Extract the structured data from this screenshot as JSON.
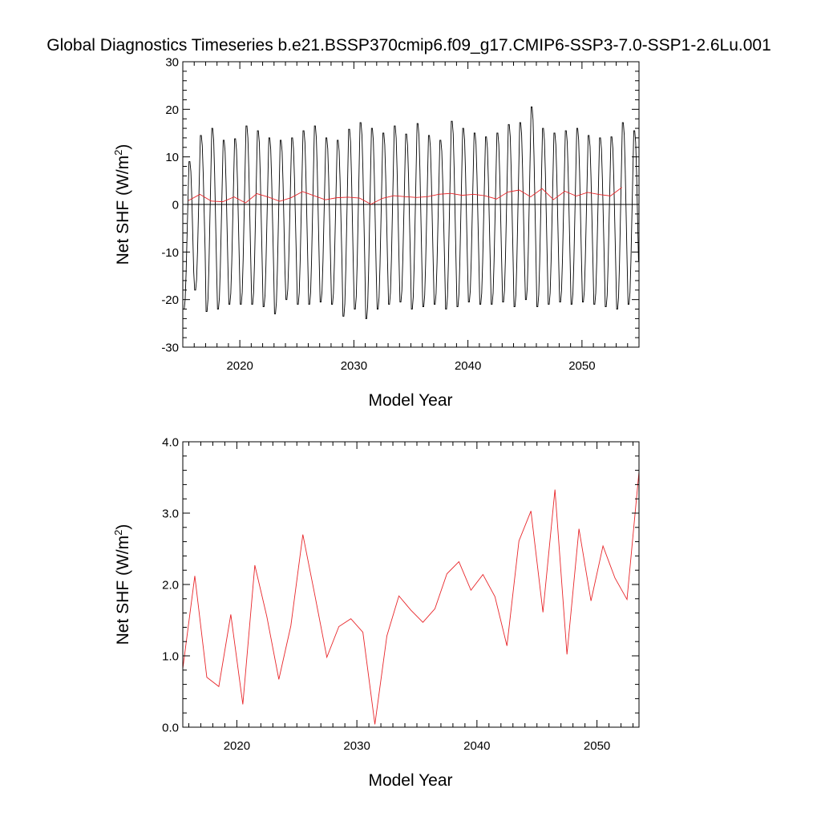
{
  "title": "Global Diagnostics Timeseries b.e21.BSSP370cmip6.f09_g17.CMIP6-SSP3-7.0-SSP1-2.6Lu.001",
  "chart_data": [
    {
      "type": "line",
      "xlabel": "Model Year",
      "ylabel": "Net SHF (W/m",
      "ylabel_sup": "2",
      "ylabel_close": ")",
      "xlim": [
        2015,
        2055
      ],
      "ylim": [
        -30,
        30
      ],
      "yticks": [
        "-30",
        "-20",
        "-10",
        "0",
        "10",
        "20",
        "30"
      ],
      "xticks": [
        "2020",
        "2030",
        "2040",
        "2050"
      ],
      "zero_line": true,
      "series": [
        {
          "kind": "monthly",
          "color": "#000000",
          "start_year": 2015,
          "months_per_year": 12,
          "annual_max": [
            9,
            14.5,
            16,
            13.5,
            13.8,
            16.5,
            15.5,
            14,
            13.5,
            14,
            15.5,
            16.5,
            14,
            13.5,
            15.8,
            17.2,
            16,
            15,
            16.5,
            14.8,
            17,
            14.5,
            13.5,
            17.5,
            16,
            15,
            14.2,
            15,
            16.8,
            17.2,
            20.5,
            16,
            15,
            15.5,
            16,
            14.5,
            14,
            14.2,
            17.2,
            15.5
          ],
          "annual_min": [
            -22,
            -18,
            -22.5,
            -22,
            -21,
            -21,
            -21,
            -21.5,
            -23,
            -20,
            -21,
            -21,
            -20.5,
            -21,
            -23.5,
            -22,
            -24,
            -22,
            -21,
            -20.5,
            -22,
            -21.5,
            -21,
            -22,
            -21.5,
            -20.5,
            -21,
            -21,
            -20.5,
            -21.5,
            -20,
            -21.5,
            -21,
            -20.5,
            -21,
            -20.5,
            -21,
            -21.5,
            -22,
            -21
          ]
        },
        {
          "kind": "annual",
          "color": "#e8262a",
          "x": [
            2015.5,
            2016.5,
            2017.5,
            2018.5,
            2019.5,
            2020.5,
            2021.5,
            2022.5,
            2023.5,
            2024.5,
            2025.5,
            2026.5,
            2027.5,
            2028.5,
            2029.5,
            2030.5,
            2031.5,
            2032.5,
            2033.5,
            2034.5,
            2035.5,
            2036.5,
            2037.5,
            2038.5,
            2039.5,
            2040.5,
            2041.5,
            2042.5,
            2043.5,
            2044.5,
            2045.5,
            2046.5,
            2047.5,
            2048.5,
            2049.5,
            2050.5,
            2051.5,
            2052.5,
            2053.5
          ],
          "values": [
            0.82,
            2.12,
            0.7,
            0.57,
            1.58,
            0.32,
            2.27,
            1.55,
            0.67,
            1.42,
            2.7,
            1.85,
            0.98,
            1.41,
            1.52,
            1.33,
            0.04,
            1.28,
            1.84,
            1.64,
            1.47,
            1.66,
            2.15,
            2.32,
            1.92,
            2.14,
            1.83,
            1.14,
            2.61,
            3.03,
            1.61,
            3.33,
            1.02,
            2.78,
            1.77,
            2.54,
            2.09,
            1.79,
            3.58
          ]
        }
      ]
    },
    {
      "type": "line",
      "xlabel": "Model Year",
      "ylabel": "Net SHF (W/m",
      "ylabel_sup": "2",
      "ylabel_close": ")",
      "xlim": [
        2015.5,
        2053.5
      ],
      "ylim": [
        0,
        4
      ],
      "yticks": [
        "0.0",
        "1.0",
        "2.0",
        "3.0",
        "4.0"
      ],
      "xticks": [
        "2020",
        "2030",
        "2040",
        "2050"
      ],
      "series": [
        {
          "kind": "annual",
          "color": "#e8262a",
          "x": [
            2015.5,
            2016.5,
            2017.5,
            2018.5,
            2019.5,
            2020.5,
            2021.5,
            2022.5,
            2023.5,
            2024.5,
            2025.5,
            2026.5,
            2027.5,
            2028.5,
            2029.5,
            2030.5,
            2031.5,
            2032.5,
            2033.5,
            2034.5,
            2035.5,
            2036.5,
            2037.5,
            2038.5,
            2039.5,
            2040.5,
            2041.5,
            2042.5,
            2043.5,
            2044.5,
            2045.5,
            2046.5,
            2047.5,
            2048.5,
            2049.5,
            2050.5,
            2051.5,
            2052.5,
            2053.5
          ],
          "values": [
            0.82,
            2.12,
            0.7,
            0.57,
            1.58,
            0.32,
            2.27,
            1.55,
            0.67,
            1.42,
            2.7,
            1.85,
            0.98,
            1.41,
            1.52,
            1.33,
            0.04,
            1.28,
            1.84,
            1.64,
            1.47,
            1.66,
            2.15,
            2.32,
            1.92,
            2.14,
            1.83,
            1.14,
            2.61,
            3.03,
            1.61,
            3.33,
            1.02,
            2.78,
            1.77,
            2.54,
            2.09,
            1.79,
            3.58
          ]
        }
      ]
    }
  ]
}
